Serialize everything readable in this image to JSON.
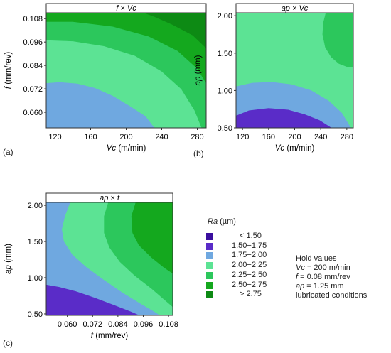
{
  "chart_data": [
    {
      "type": "contour",
      "panel": "(a)",
      "title": "f × Vc",
      "xlabel_var": "Vc",
      "xlabel_unit": "(m/min)",
      "ylabel_var": "f",
      "ylabel_unit": "(mm/rev)",
      "xlim": [
        110,
        290
      ],
      "ylim": [
        0.052,
        0.111
      ],
      "xticks": [
        {
          "v": 120,
          "t": "120"
        },
        {
          "v": 160,
          "t": "160"
        },
        {
          "v": 200,
          "t": "200"
        },
        {
          "v": 240,
          "t": "240"
        },
        {
          "v": 280,
          "t": "280"
        }
      ],
      "yticks": [
        {
          "v": 0.06,
          "t": "0.060"
        },
        {
          "v": 0.072,
          "t": "0.072"
        },
        {
          "v": 0.084,
          "t": "0.084"
        },
        {
          "v": 0.096,
          "t": "0.096"
        },
        {
          "v": 0.108,
          "t": "0.108"
        }
      ],
      "regions": [
        {
          "range": "1.75-2.00",
          "poly": [
            [
              110,
              0.052
            ],
            [
              110,
              0.075
            ],
            [
              125,
              0.0755
            ],
            [
              145,
              0.0748
            ],
            [
              165,
              0.0725
            ],
            [
              185,
              0.0685
            ],
            [
              205,
              0.063
            ],
            [
              222,
              0.058
            ],
            [
              232,
              0.052
            ]
          ]
        },
        {
          "range": "2.00-2.25",
          "poly": [
            [
              110,
              0.075
            ],
            [
              110,
              0.097
            ],
            [
              140,
              0.0965
            ],
            [
              175,
              0.094
            ],
            [
              210,
              0.089
            ],
            [
              240,
              0.081
            ],
            [
              262,
              0.072
            ],
            [
              277,
              0.061
            ],
            [
              285,
              0.052
            ],
            [
              232,
              0.052
            ],
            [
              222,
              0.058
            ],
            [
              205,
              0.063
            ],
            [
              185,
              0.0685
            ],
            [
              165,
              0.0725
            ],
            [
              145,
              0.0748
            ],
            [
              125,
              0.0755
            ]
          ]
        },
        {
          "range": "2.25-2.50",
          "poly": [
            [
              110,
              0.097
            ],
            [
              110,
              0.1065
            ],
            [
              140,
              0.1065
            ],
            [
              185,
              0.104
            ],
            [
              225,
              0.099
            ],
            [
              258,
              0.0915
            ],
            [
              280,
              0.0825
            ],
            [
              290,
              0.075
            ],
            [
              290,
              0.052
            ],
            [
              285,
              0.052
            ],
            [
              277,
              0.061
            ],
            [
              262,
              0.072
            ],
            [
              240,
              0.081
            ],
            [
              210,
              0.089
            ],
            [
              175,
              0.094
            ],
            [
              140,
              0.0965
            ]
          ]
        },
        {
          "range": "2.50-2.75",
          "poly": [
            [
              110,
              0.1065
            ],
            [
              110,
              0.111
            ],
            [
              290,
              0.111
            ],
            [
              290,
              0.075
            ],
            [
              280,
              0.0825
            ],
            [
              258,
              0.0915
            ],
            [
              225,
              0.099
            ],
            [
              185,
              0.104
            ],
            [
              140,
              0.1065
            ]
          ]
        },
        {
          "range": "> 2.75",
          "poly": [
            [
              220,
              0.111
            ],
            [
              290,
              0.111
            ],
            [
              290,
              0.093
            ],
            [
              275,
              0.0995
            ],
            [
              252,
              0.105
            ],
            [
              232,
              0.109
            ]
          ]
        }
      ]
    },
    {
      "type": "contour",
      "panel": "(b)",
      "title": "ap × Vc",
      "xlabel_var": "Vc",
      "xlabel_unit": "(m/min)",
      "ylabel_var": "ap",
      "ylabel_unit": "(mm)",
      "xlim": [
        110,
        290
      ],
      "ylim": [
        0.5,
        2.04
      ],
      "xticks": [
        {
          "v": 120,
          "t": "120"
        },
        {
          "v": 160,
          "t": "160"
        },
        {
          "v": 200,
          "t": "200"
        },
        {
          "v": 240,
          "t": "240"
        },
        {
          "v": 280,
          "t": "280"
        }
      ],
      "yticks": [
        {
          "v": 0.5,
          "t": "0.50"
        },
        {
          "v": 1.0,
          "t": "1.00"
        },
        {
          "v": 1.5,
          "t": "1.50"
        },
        {
          "v": 2.0,
          "t": "2.00"
        }
      ],
      "regions": [
        {
          "range": "2.00-2.25",
          "poly": [
            [
              110,
              0.5
            ],
            [
              110,
              2.04
            ],
            [
              290,
              2.04
            ],
            [
              290,
              0.5
            ]
          ]
        },
        {
          "range": "2.25-2.50",
          "poly": [
            [
              248,
              2.04
            ],
            [
              244,
              1.9
            ],
            [
              243,
              1.75
            ],
            [
              247,
              1.58
            ],
            [
              256,
              1.45
            ],
            [
              268,
              1.36
            ],
            [
              280,
              1.32
            ],
            [
              290,
              1.31
            ],
            [
              290,
              2.04
            ]
          ]
        },
        {
          "range": "1.75-2.00",
          "poly": [
            [
              110,
              0.5
            ],
            [
              110,
              1.05
            ],
            [
              135,
              1.1
            ],
            [
              165,
              1.11
            ],
            [
              195,
              1.08
            ],
            [
              225,
              1.0
            ],
            [
              252,
              0.86
            ],
            [
              272,
              0.7
            ],
            [
              286,
              0.5
            ]
          ]
        },
        {
          "range": "1.50-1.75",
          "poly": [
            [
              110,
              0.5
            ],
            [
              110,
              0.66
            ],
            [
              130,
              0.73
            ],
            [
              160,
              0.76
            ],
            [
              190,
              0.74
            ],
            [
              215,
              0.68
            ],
            [
              238,
              0.6
            ],
            [
              256,
              0.5
            ]
          ]
        }
      ]
    },
    {
      "type": "contour",
      "panel": "(c)",
      "title": "ap × f",
      "xlabel_var": "f",
      "xlabel_unit": "(mm/rev)",
      "ylabel_var": "ap",
      "ylabel_unit": "(mm)",
      "xlim": [
        0.05,
        0.11
      ],
      "ylim": [
        0.48,
        2.04
      ],
      "xticks": [
        {
          "v": 0.06,
          "t": "0.060"
        },
        {
          "v": 0.072,
          "t": "0.072"
        },
        {
          "v": 0.084,
          "t": "0.084"
        },
        {
          "v": 0.096,
          "t": "0.096"
        },
        {
          "v": 0.108,
          "t": "0.108"
        }
      ],
      "yticks": [
        {
          "v": 0.5,
          "t": "0.50"
        },
        {
          "v": 1.0,
          "t": "1.00"
        },
        {
          "v": 1.5,
          "t": "1.50"
        },
        {
          "v": 2.0,
          "t": "2.00"
        }
      ],
      "regions": [
        {
          "range": "1.75-2.00",
          "poly": [
            [
              0.05,
              0.48
            ],
            [
              0.05,
              2.04
            ],
            [
              0.11,
              2.04
            ],
            [
              0.11,
              0.48
            ]
          ]
        },
        {
          "range": "2.00-2.25",
          "poly": [
            [
              0.0615,
              2.04
            ],
            [
              0.059,
              1.85
            ],
            [
              0.0575,
              1.67
            ],
            [
              0.0585,
              1.5
            ],
            [
              0.0625,
              1.32
            ],
            [
              0.069,
              1.15
            ],
            [
              0.077,
              0.98
            ],
            [
              0.086,
              0.8
            ],
            [
              0.095,
              0.64
            ],
            [
              0.102,
              0.52
            ],
            [
              0.104,
              0.48
            ],
            [
              0.11,
              0.48
            ],
            [
              0.11,
              2.04
            ]
          ]
        },
        {
          "range": "2.25-2.50",
          "poly": [
            [
              0.0795,
              2.04
            ],
            [
              0.0775,
              1.85
            ],
            [
              0.0775,
              1.62
            ],
            [
              0.08,
              1.42
            ],
            [
              0.085,
              1.22
            ],
            [
              0.092,
              1.03
            ],
            [
              0.1,
              0.85
            ],
            [
              0.106,
              0.7
            ],
            [
              0.11,
              0.6
            ],
            [
              0.11,
              2.04
            ]
          ]
        },
        {
          "range": "2.50-2.75",
          "poly": [
            [
              0.0925,
              2.04
            ],
            [
              0.0905,
              1.85
            ],
            [
              0.091,
              1.62
            ],
            [
              0.094,
              1.45
            ],
            [
              0.1,
              1.28
            ],
            [
              0.106,
              1.14
            ],
            [
              0.11,
              1.06
            ],
            [
              0.11,
              2.04
            ]
          ]
        },
        {
          "range": "1.50-1.75",
          "poly": [
            [
              0.05,
              0.48
            ],
            [
              0.05,
              0.9
            ],
            [
              0.056,
              0.87
            ],
            [
              0.064,
              0.81
            ],
            [
              0.073,
              0.72
            ],
            [
              0.082,
              0.62
            ],
            [
              0.09,
              0.53
            ],
            [
              0.094,
              0.48
            ]
          ]
        }
      ]
    }
  ],
  "panel_labels": {
    "a": "(a)",
    "b": "(b)",
    "c": "(c)"
  },
  "colors": {
    "< 1.50": "#3a0f9e",
    "1.50-1.75": "#5a2cc8",
    "1.75-2.00": "#6fa8e0",
    "2.00-2.25": "#5ce394",
    "2.25-2.50": "#2cc75c",
    "2.50-2.75": "#14a81e",
    "> 2.75": "#0d8a14"
  },
  "legend": {
    "title_var": "Ra",
    "title_unit": "(µm)",
    "items": [
      {
        "key": "< 1.50",
        "label": "< 1.50",
        "indent": true
      },
      {
        "key": "1.50-1.75",
        "label": "1.50−1.75",
        "indent": false
      },
      {
        "key": "1.75-2.00",
        "label": "1.75−2.00",
        "indent": false
      },
      {
        "key": "2.00-2.25",
        "label": "2.00−2.25",
        "indent": false
      },
      {
        "key": "2.25-2.50",
        "label": "2.25−2.50",
        "indent": false
      },
      {
        "key": "2.50-2.75",
        "label": "2.50−2.75",
        "indent": false
      },
      {
        "key": "> 2.75",
        "label": "> 2.75",
        "indent": true
      }
    ]
  },
  "hold_values": {
    "heading": "Hold values",
    "vc_var": "Vc",
    "vc_text": " = 200 m/min",
    "f_var": "f",
    "f_text": " = 0.08 mm/rev",
    "ap_var": "ap",
    "ap_text": " = 1.25 mm",
    "condition": "lubricated conditions"
  }
}
